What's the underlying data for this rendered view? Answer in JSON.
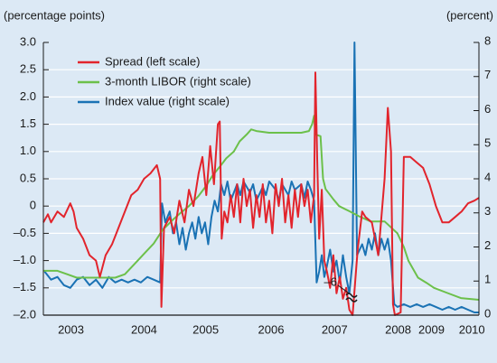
{
  "chart_data": {
    "type": "line",
    "left_axis_label": "(percentage points)",
    "right_axis_label": "(percent)",
    "xlim": [
      2003.08,
      2009.87
    ],
    "xticks": [
      {
        "value": 2003.51,
        "label": "2003"
      },
      {
        "value": 2004.65,
        "label": "2004"
      },
      {
        "value": 2005.61,
        "label": "2005"
      },
      {
        "value": 2006.63,
        "label": "2006"
      },
      {
        "value": 2007.62,
        "label": "2007"
      },
      {
        "value": 2008.61,
        "label": "2008"
      },
      {
        "value": 2009.13,
        "label": "2009"
      },
      {
        "value": 2009.76,
        "label": "2010"
      }
    ],
    "ylim": [
      -2,
      3
    ],
    "yticks": [
      {
        "value": 3,
        "label": "3.0"
      },
      2.5,
      {
        "value": 2,
        "label": "2.0"
      },
      1.5,
      {
        "value": 1,
        "label": "1.0"
      },
      0.5,
      0,
      {
        "value": -0.5,
        "label": "–0.5"
      },
      {
        "value": -1,
        "label": "–1.0"
      },
      {
        "value": -1.5,
        "label": "–1.5"
      },
      {
        "value": -2,
        "label": "–2.0"
      }
    ],
    "y2lim": [
      0,
      8
    ],
    "y2ticks": [
      0,
      1,
      2,
      3,
      4,
      5,
      6,
      7,
      8
    ],
    "grid": true,
    "legend": "upper left",
    "annotation": "–6",
    "series": [
      {
        "name": "Spread (left scale)",
        "color": "#e2242c",
        "x": [
          2003.08,
          2003.15,
          2003.2,
          2003.3,
          2003.4,
          2003.5,
          2003.55,
          2003.6,
          2003.7,
          2003.8,
          2003.9,
          2003.96,
          2004.05,
          2004.15,
          2004.25,
          2004.35,
          2004.45,
          2004.55,
          2004.65,
          2004.75,
          2004.85,
          2004.9,
          2004.92,
          2004.96,
          2005.05,
          2005.12,
          2005.2,
          2005.28,
          2005.35,
          2005.42,
          2005.5,
          2005.56,
          2005.62,
          2005.68,
          2005.74,
          2005.8,
          2005.83,
          2005.86,
          2005.9,
          2005.95,
          2006.0,
          2006.05,
          2006.1,
          2006.15,
          2006.2,
          2006.25,
          2006.3,
          2006.35,
          2006.4,
          2006.45,
          2006.5,
          2006.55,
          2006.6,
          2006.65,
          2006.7,
          2006.75,
          2006.8,
          2006.85,
          2006.9,
          2006.95,
          2007.0,
          2007.05,
          2007.1,
          2007.15,
          2007.2,
          2007.25,
          2007.3,
          2007.32,
          2007.35,
          2007.38,
          2007.42,
          2007.46,
          2007.5,
          2007.55,
          2007.6,
          2007.65,
          2007.7,
          2007.75,
          2007.8,
          2007.85,
          2007.9,
          2007.94,
          2007.98,
          2008.05,
          2008.1,
          2008.2,
          2008.3,
          2008.4,
          2008.45,
          2008.5,
          2008.53,
          2008.56,
          2008.65,
          2008.7,
          2008.8,
          2008.9,
          2009.0,
          2009.1,
          2009.2,
          2009.3,
          2009.4,
          2009.5,
          2009.6,
          2009.7,
          2009.8,
          2009.87
        ],
        "values": [
          -0.3,
          -0.15,
          -0.3,
          -0.1,
          -0.2,
          0.05,
          -0.1,
          -0.4,
          -0.6,
          -0.9,
          -1.0,
          -1.3,
          -0.9,
          -0.7,
          -0.4,
          -0.1,
          0.2,
          0.3,
          0.5,
          0.6,
          0.75,
          0.5,
          -1.85,
          -0.4,
          -0.2,
          -0.5,
          0.1,
          -0.3,
          0.3,
          0.0,
          0.6,
          0.9,
          0.2,
          1.1,
          0.4,
          1.5,
          1.55,
          -0.6,
          -0.1,
          -0.3,
          0.2,
          -0.2,
          0.4,
          -0.3,
          0.5,
          0.0,
          0.3,
          -0.4,
          0.2,
          -0.2,
          0.4,
          -0.3,
          0.1,
          -0.5,
          0.4,
          0.0,
          0.5,
          -0.3,
          0.2,
          -0.4,
          0.3,
          -0.2,
          0.4,
          0.0,
          0.3,
          -0.3,
          0.2,
          2.45,
          0.8,
          -0.6,
          0.3,
          -1.0,
          -1.2,
          -1.5,
          -0.9,
          -1.6,
          -1.3,
          -1.7,
          -1.5,
          -1.9,
          -2.0,
          -1.4,
          -0.8,
          -0.1,
          -0.2,
          -0.3,
          -0.9,
          0.5,
          1.8,
          1.0,
          -1.8,
          -2.0,
          -1.95,
          0.9,
          0.9,
          0.8,
          0.7,
          0.4,
          0.0,
          -0.3,
          -0.3,
          -0.2,
          -0.1,
          0.05,
          0.1,
          0.15
        ]
      },
      {
        "name": "3-month LIBOR (right scale)",
        "color": "#6cc04a",
        "axis": "y2",
        "x": [
          2003.08,
          2003.3,
          2003.45,
          2003.6,
          2003.9,
          2004.2,
          2004.35,
          2004.5,
          2004.65,
          2004.8,
          2004.94,
          2005.1,
          2005.22,
          2005.35,
          2005.5,
          2005.62,
          2005.72,
          2005.85,
          2005.93,
          2006.05,
          2006.14,
          2006.25,
          2006.32,
          2006.4,
          2006.6,
          2006.9,
          2007.1,
          2007.22,
          2007.27,
          2007.3,
          2007.32,
          2007.4,
          2007.44,
          2007.48,
          2007.6,
          2007.69,
          2007.85,
          2008.0,
          2008.18,
          2008.4,
          2008.6,
          2008.7,
          2008.77,
          2008.92,
          2009.05,
          2009.17,
          2009.38,
          2009.59,
          2009.87
        ],
        "values": [
          1.3,
          1.3,
          1.2,
          1.1,
          1.1,
          1.1,
          1.2,
          1.5,
          1.8,
          2.1,
          2.5,
          2.8,
          3.0,
          3.2,
          3.5,
          3.8,
          4.1,
          4.4,
          4.6,
          4.8,
          5.1,
          5.3,
          5.45,
          5.4,
          5.35,
          5.35,
          5.35,
          5.4,
          5.6,
          5.85,
          5.3,
          5.25,
          4.0,
          3.7,
          3.4,
          3.2,
          3.05,
          2.9,
          2.75,
          2.75,
          2.4,
          2.0,
          1.6,
          1.1,
          0.95,
          0.8,
          0.65,
          0.5,
          0.45
        ]
      },
      {
        "name": "Index value (right scale)",
        "color": "#1a72b4",
        "axis": "y2",
        "x": [
          2003.1,
          2003.2,
          2003.3,
          2003.4,
          2003.5,
          2003.6,
          2003.7,
          2003.8,
          2003.9,
          2004.0,
          2004.1,
          2004.2,
          2004.3,
          2004.4,
          2004.5,
          2004.6,
          2004.7,
          2004.8,
          2004.9,
          2004.93,
          2004.98,
          2005.05,
          2005.1,
          2005.15,
          2005.2,
          2005.25,
          2005.3,
          2005.35,
          2005.4,
          2005.45,
          2005.5,
          2005.55,
          2005.6,
          2005.65,
          2005.7,
          2005.75,
          2005.8,
          2005.85,
          2005.9,
          2005.95,
          2006.0,
          2006.1,
          2006.15,
          2006.2,
          2006.3,
          2006.35,
          2006.4,
          2006.5,
          2006.55,
          2006.6,
          2006.7,
          2006.75,
          2006.8,
          2006.9,
          2006.95,
          2007.0,
          2007.1,
          2007.15,
          2007.2,
          2007.25,
          2007.3,
          2007.34,
          2007.38,
          2007.42,
          2007.46,
          2007.5,
          2007.55,
          2007.6,
          2007.65,
          2007.7,
          2007.75,
          2007.8,
          2007.85,
          2007.9,
          2007.93,
          2007.97,
          2008.05,
          2008.1,
          2008.15,
          2008.2,
          2008.25,
          2008.3,
          2008.35,
          2008.4,
          2008.45,
          2008.5,
          2008.55,
          2008.6,
          2008.7,
          2008.8,
          2008.9,
          2009.0,
          2009.1,
          2009.2,
          2009.3,
          2009.4,
          2009.5,
          2009.6,
          2009.7,
          2009.8,
          2009.87
        ],
        "values": [
          1.28,
          1.04,
          1.12,
          0.88,
          0.8,
          1.04,
          1.12,
          0.88,
          1.04,
          0.8,
          1.12,
          0.96,
          1.04,
          0.96,
          1.04,
          0.96,
          1.12,
          1.04,
          0.96,
          3.28,
          2.72,
          3.04,
          2.4,
          2.72,
          2.08,
          2.56,
          1.92,
          2.4,
          2.72,
          2.24,
          2.88,
          2.4,
          2.72,
          2.08,
          2.88,
          3.36,
          3.04,
          3.84,
          3.52,
          3.92,
          3.36,
          3.84,
          3.52,
          3.92,
          3.6,
          3.84,
          3.36,
          3.76,
          3.52,
          3.92,
          3.68,
          3.36,
          3.84,
          3.52,
          3.92,
          3.68,
          3.84,
          3.44,
          3.92,
          3.68,
          3.36,
          0.96,
          1.28,
          1.76,
          1.12,
          1.44,
          1.92,
          1.28,
          1.6,
          0.96,
          1.76,
          1.12,
          0.64,
          1.6,
          8.0,
          1.76,
          2.08,
          1.76,
          2.24,
          1.92,
          2.4,
          1.76,
          2.24,
          1.92,
          2.24,
          1.6,
          0.32,
          0.24,
          0.32,
          0.24,
          0.32,
          0.24,
          0.32,
          0.24,
          0.16,
          0.24,
          0.16,
          0.24,
          0.16,
          0.08,
          0.08
        ]
      }
    ]
  }
}
